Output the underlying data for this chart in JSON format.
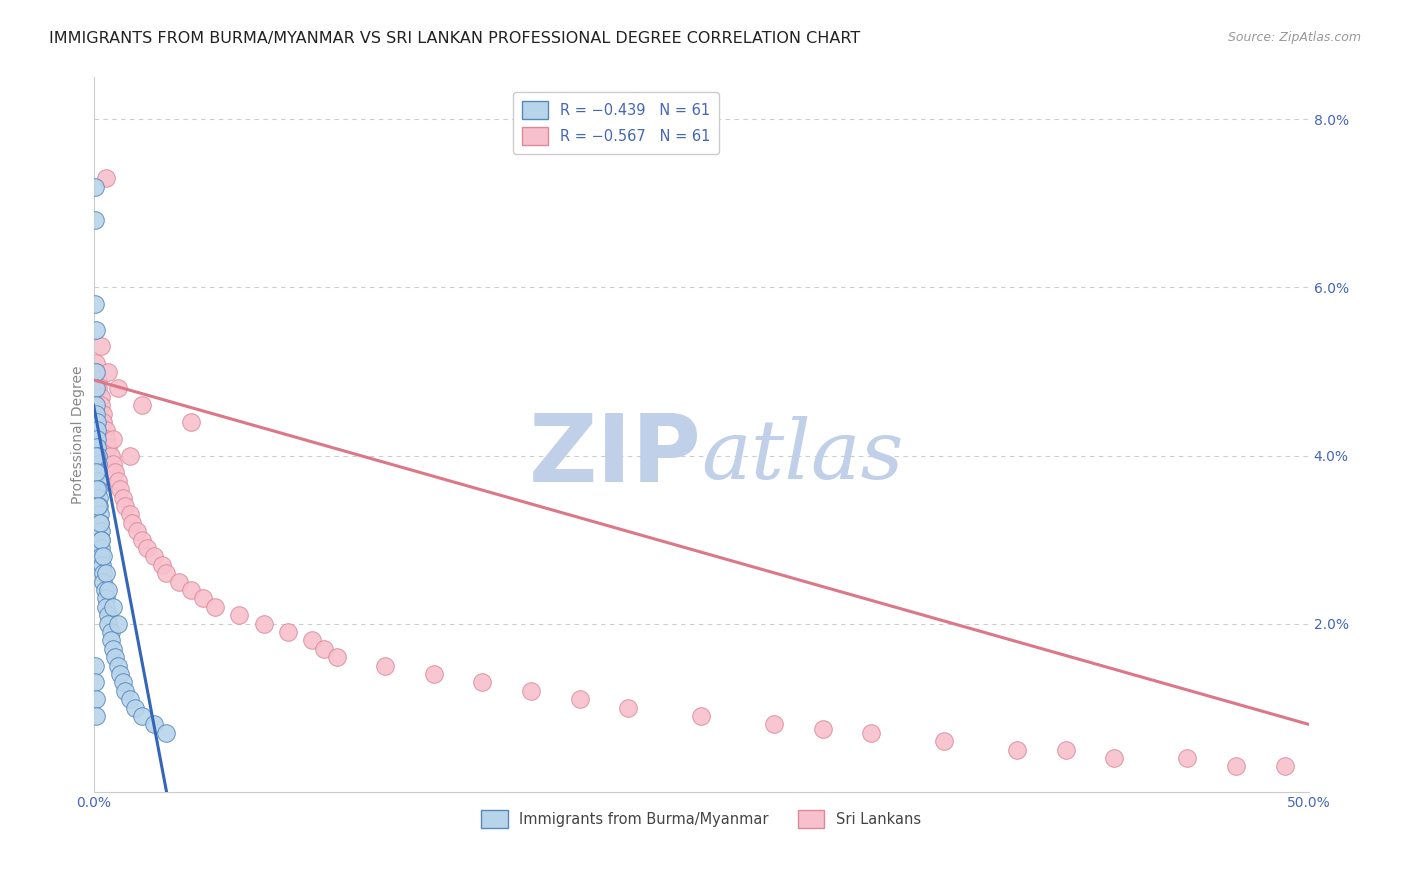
{
  "title": "IMMIGRANTS FROM BURMA/MYANMAR VS SRI LANKAN PROFESSIONAL DEGREE CORRELATION CHART",
  "source": "Source: ZipAtlas.com",
  "ylabel": "Professional Degree",
  "xlim": [
    0.0,
    0.5
  ],
  "ylim": [
    0.0,
    0.085
  ],
  "x_ticks": [
    0.0,
    0.5
  ],
  "x_tick_labels": [
    "0.0%",
    "50.0%"
  ],
  "right_y_ticks": [
    0.02,
    0.04,
    0.06,
    0.08
  ],
  "right_y_tick_labels": [
    "2.0%",
    "4.0%",
    "6.0%",
    "8.0%"
  ],
  "legend_line1": "R = −0.439   N = 61",
  "legend_line2": "R = −0.567   N = 61",
  "legend_labels_bottom": [
    "Immigrants from Burma/Myanmar",
    "Sri Lankans"
  ],
  "blue_scatter_x": [
    0.0005,
    0.0008,
    0.001,
    0.001,
    0.0012,
    0.0012,
    0.0014,
    0.0015,
    0.0015,
    0.0016,
    0.0018,
    0.0018,
    0.002,
    0.002,
    0.002,
    0.0022,
    0.0022,
    0.0025,
    0.0025,
    0.003,
    0.003,
    0.003,
    0.0032,
    0.0035,
    0.004,
    0.004,
    0.0045,
    0.005,
    0.005,
    0.006,
    0.006,
    0.007,
    0.007,
    0.008,
    0.009,
    0.01,
    0.011,
    0.012,
    0.013,
    0.015,
    0.017,
    0.02,
    0.025,
    0.03,
    0.0004,
    0.0006,
    0.0008,
    0.001,
    0.0015,
    0.002,
    0.0025,
    0.003,
    0.004,
    0.005,
    0.006,
    0.008,
    0.01,
    0.0005,
    0.0007,
    0.0009,
    0.0011
  ],
  "blue_scatter_y": [
    0.058,
    0.055,
    0.05,
    0.048,
    0.046,
    0.045,
    0.044,
    0.043,
    0.042,
    0.041,
    0.04,
    0.039,
    0.038,
    0.037,
    0.036,
    0.035,
    0.034,
    0.033,
    0.032,
    0.031,
    0.03,
    0.029,
    0.028,
    0.027,
    0.026,
    0.025,
    0.024,
    0.023,
    0.022,
    0.021,
    0.02,
    0.019,
    0.018,
    0.017,
    0.016,
    0.015,
    0.014,
    0.013,
    0.012,
    0.011,
    0.01,
    0.009,
    0.008,
    0.007,
    0.072,
    0.068,
    0.04,
    0.038,
    0.036,
    0.034,
    0.032,
    0.03,
    0.028,
    0.026,
    0.024,
    0.022,
    0.02,
    0.015,
    0.013,
    0.011,
    0.009
  ],
  "pink_scatter_x": [
    0.001,
    0.001,
    0.002,
    0.002,
    0.003,
    0.003,
    0.004,
    0.004,
    0.005,
    0.005,
    0.006,
    0.007,
    0.008,
    0.009,
    0.01,
    0.011,
    0.012,
    0.013,
    0.015,
    0.016,
    0.018,
    0.02,
    0.022,
    0.025,
    0.028,
    0.03,
    0.035,
    0.04,
    0.045,
    0.05,
    0.06,
    0.07,
    0.08,
    0.09,
    0.095,
    0.1,
    0.12,
    0.14,
    0.16,
    0.18,
    0.2,
    0.22,
    0.25,
    0.28,
    0.3,
    0.32,
    0.35,
    0.38,
    0.4,
    0.42,
    0.45,
    0.47,
    0.49,
    0.003,
    0.006,
    0.01,
    0.02,
    0.04,
    0.005,
    0.008,
    0.015
  ],
  "pink_scatter_y": [
    0.051,
    0.05,
    0.049,
    0.048,
    0.047,
    0.046,
    0.045,
    0.044,
    0.043,
    0.042,
    0.041,
    0.04,
    0.039,
    0.038,
    0.037,
    0.036,
    0.035,
    0.034,
    0.033,
    0.032,
    0.031,
    0.03,
    0.029,
    0.028,
    0.027,
    0.026,
    0.025,
    0.024,
    0.023,
    0.022,
    0.021,
    0.02,
    0.019,
    0.018,
    0.017,
    0.016,
    0.015,
    0.014,
    0.013,
    0.012,
    0.011,
    0.01,
    0.009,
    0.008,
    0.0075,
    0.007,
    0.006,
    0.005,
    0.005,
    0.004,
    0.004,
    0.003,
    0.003,
    0.053,
    0.05,
    0.048,
    0.046,
    0.044,
    0.073,
    0.042,
    0.04
  ],
  "blue_line_x": [
    0.0,
    0.03
  ],
  "blue_line_y": [
    0.046,
    0.0
  ],
  "pink_line_x": [
    0.0,
    0.5
  ],
  "pink_line_y": [
    0.049,
    0.008
  ],
  "background_color": "#ffffff",
  "scatter_blue_face": "#b8d4ea",
  "scatter_blue_edge": "#5588bb",
  "scatter_pink_face": "#f8c0cc",
  "scatter_pink_edge": "#dd8899",
  "line_blue_color": "#3366bb",
  "line_pink_color": "#dd7788",
  "grid_color": "#cccccc",
  "title_color": "#222222",
  "axis_label_color": "#4466bb",
  "watermark_zip_color": "#c0d0e8",
  "watermark_atlas_color": "#c0d0e8",
  "title_fontsize": 11.5,
  "source_fontsize": 9,
  "axis_tick_fontsize": 10,
  "ylabel_fontsize": 10,
  "scatter_size": 160
}
